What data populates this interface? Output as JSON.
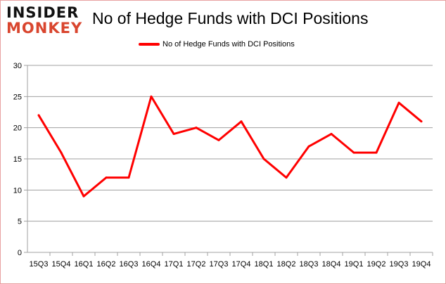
{
  "logo": {
    "line1": "INSIDER",
    "line2": "MONKEY"
  },
  "chart_data": {
    "type": "line",
    "title": "No of Hedge Funds with DCI Positions",
    "xlabel": "",
    "ylabel": "",
    "categories": [
      "15Q3",
      "15Q4",
      "16Q1",
      "16Q2",
      "16Q3",
      "16Q4",
      "17Q1",
      "17Q2",
      "17Q3",
      "17Q4",
      "18Q1",
      "18Q2",
      "18Q3",
      "18Q4",
      "19Q1",
      "19Q2",
      "19Q3",
      "19Q4"
    ],
    "series": [
      {
        "name": "No of Hedge Funds with DCI Positions",
        "color": "#ff0000",
        "values": [
          22,
          16,
          9,
          12,
          12,
          25,
          19,
          20,
          18,
          21,
          15,
          12,
          17,
          19,
          16,
          16,
          24,
          21
        ]
      }
    ],
    "ylim": [
      0,
      30
    ],
    "yticks": [
      0,
      5,
      10,
      15,
      20,
      25,
      30
    ],
    "grid": true,
    "legend": "top"
  }
}
